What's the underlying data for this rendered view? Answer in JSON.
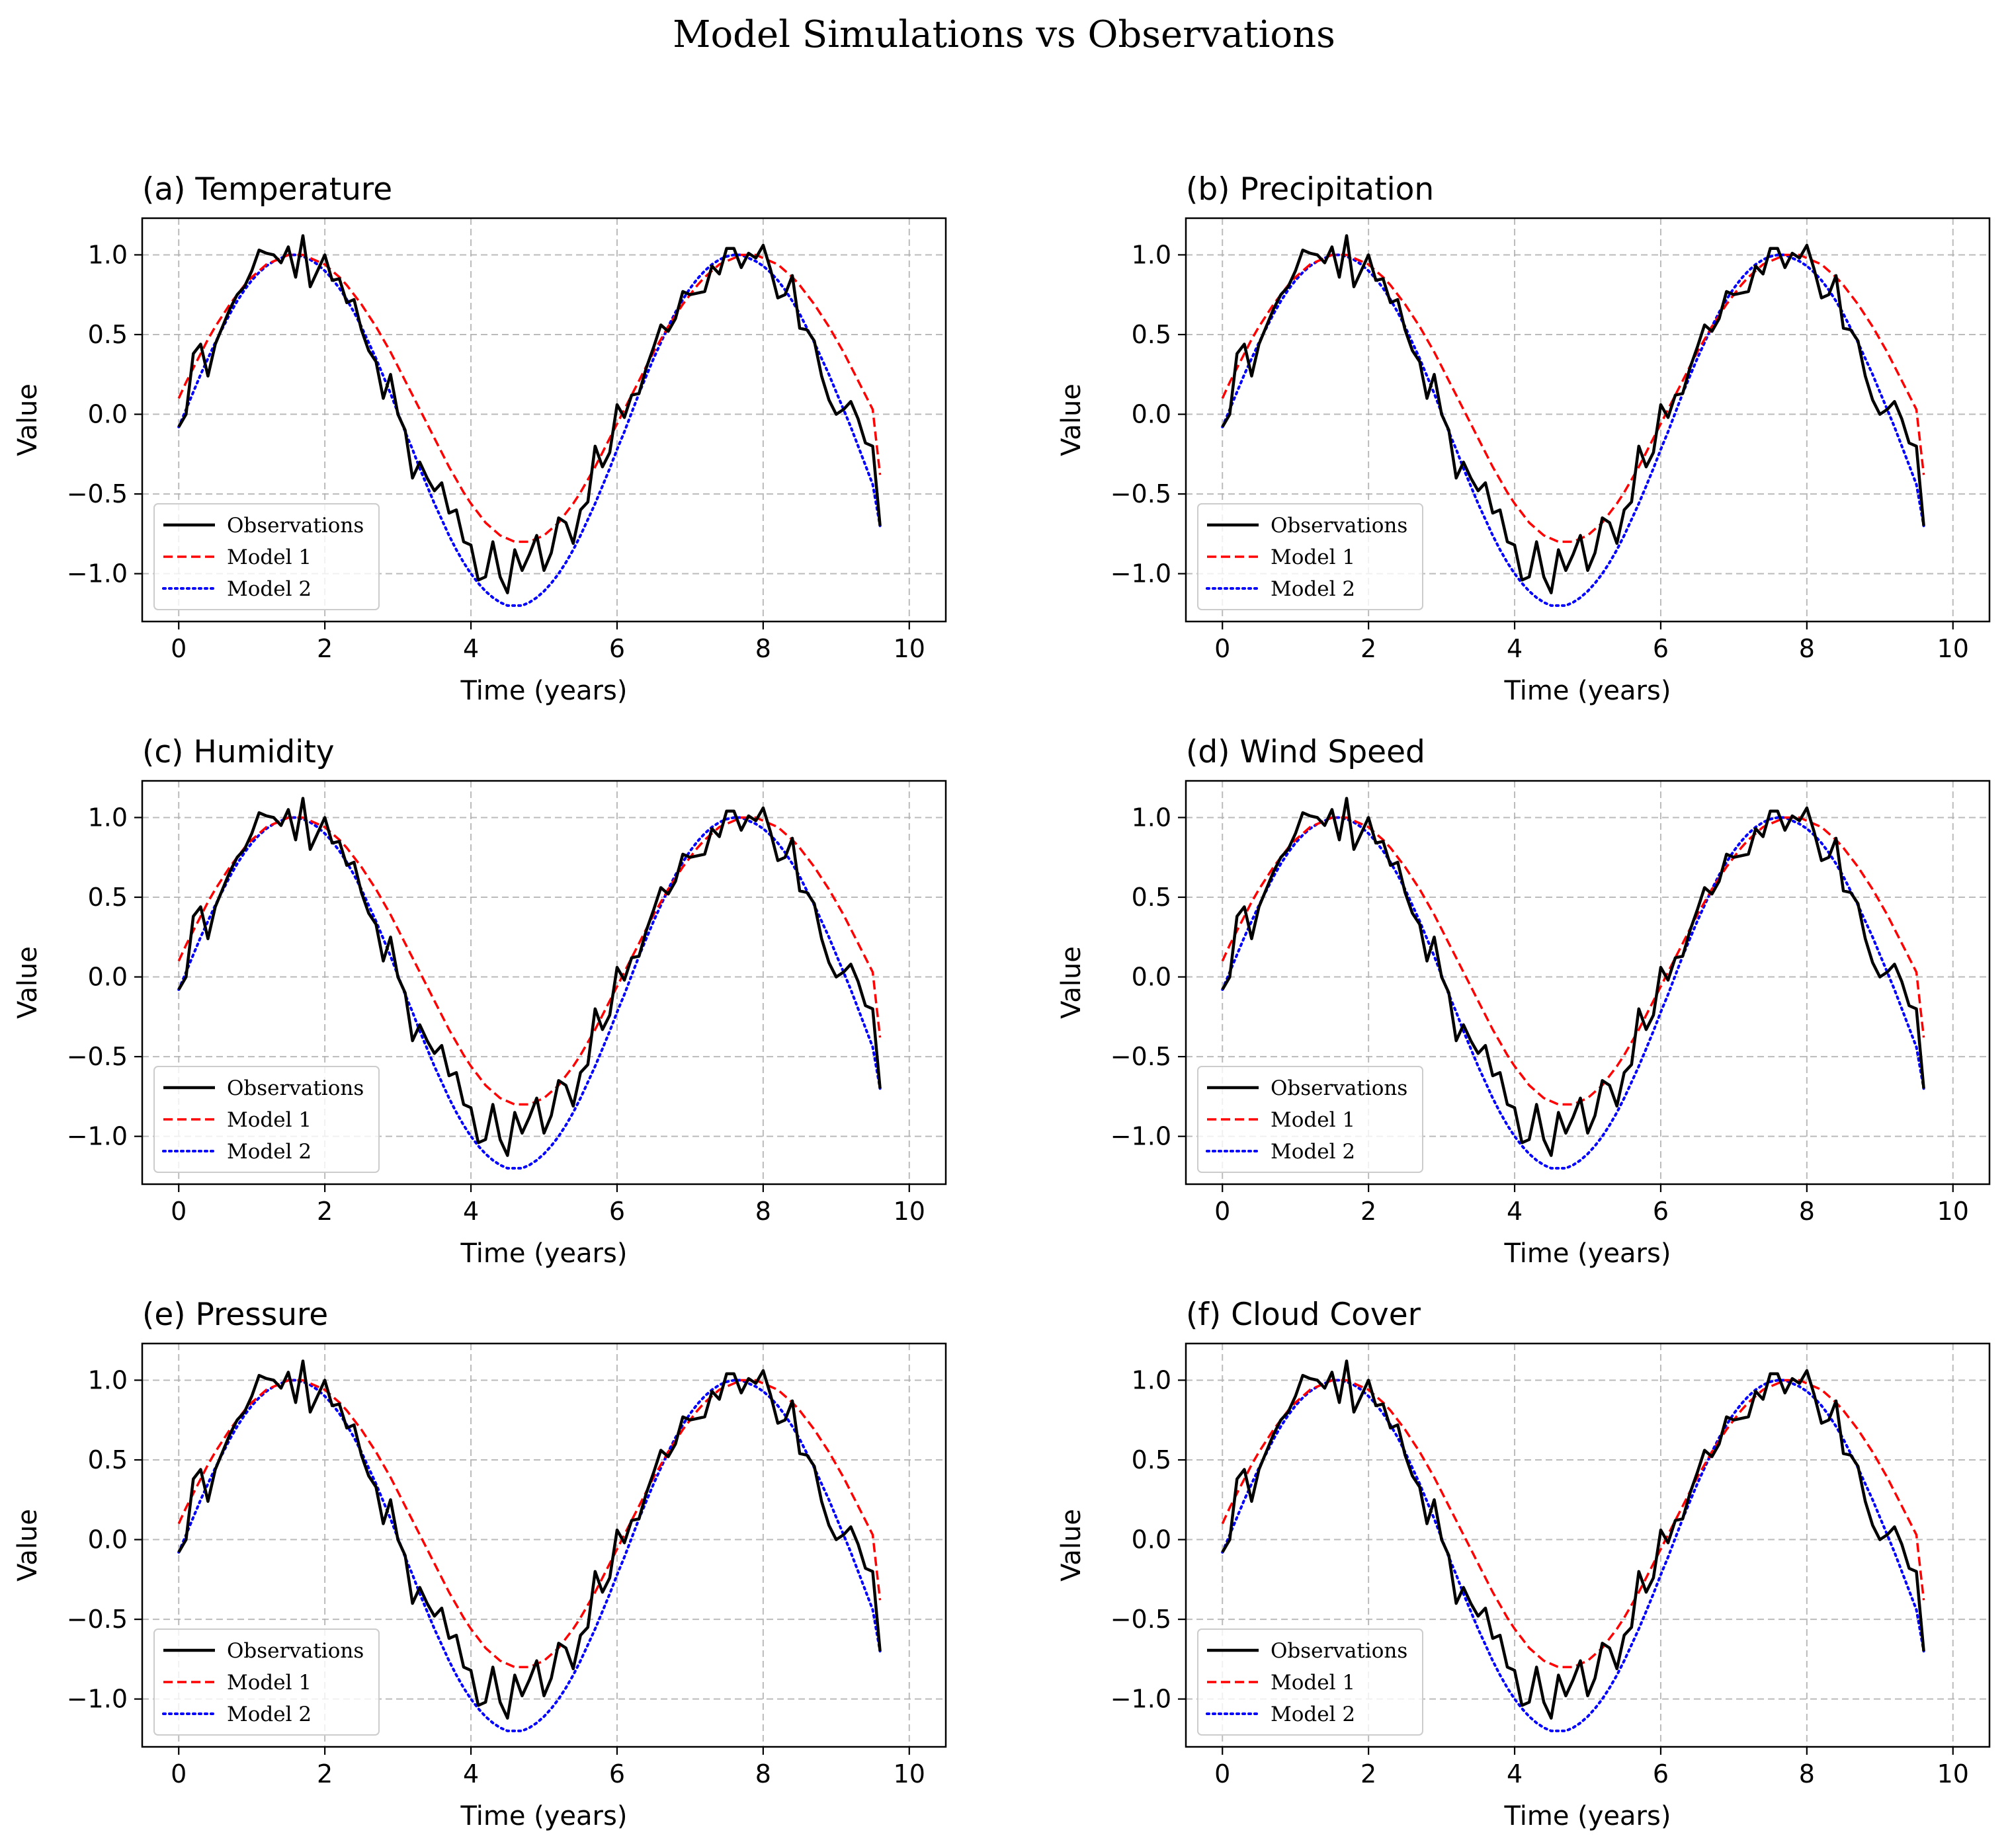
{
  "figure": {
    "title": "Model Simulations vs Observations"
  },
  "style": {
    "observations_color": "#000000",
    "model1_color": "#ff0000",
    "model2_color": "#0000ff",
    "grid_color": "#b0b0b0",
    "legend_border_color": "#cccccc"
  },
  "chart_data": [
    {
      "type": "line",
      "panel_title": "(a) Temperature",
      "xlabel": "Time (years)",
      "ylabel": "Value",
      "xlim": [
        -0.5,
        10.5
      ],
      "ylim": [
        -1.3,
        1.23
      ],
      "xticks": [
        0,
        2,
        4,
        6,
        8,
        10
      ],
      "xtick_labels": [
        "0",
        "2",
        "4",
        "6",
        "8",
        "10"
      ],
      "yticks": [
        -1.0,
        -0.5,
        0.0,
        0.5,
        1.0
      ],
      "ytick_labels": [
        "−1.0",
        "−0.5",
        "0.0",
        "0.5",
        "1.0"
      ],
      "grid": true,
      "legend_position": "lower-left",
      "series": [
        {
          "name": "Observations",
          "style": "solid",
          "color": "#000000"
        },
        {
          "name": "Model 1",
          "style": "dashed",
          "color": "#ff0000"
        },
        {
          "name": "Model 2",
          "style": "dotted",
          "color": "#0000ff"
        }
      ]
    },
    {
      "type": "line",
      "panel_title": "(b) Precipitation",
      "xlabel": "Time (years)",
      "ylabel": "Value",
      "xlim": [
        -0.5,
        10.5
      ],
      "ylim": [
        -1.3,
        1.23
      ],
      "xticks": [
        0,
        2,
        4,
        6,
        8,
        10
      ],
      "xtick_labels": [
        "0",
        "2",
        "4",
        "6",
        "8",
        "10"
      ],
      "yticks": [
        -1.0,
        -0.5,
        0.0,
        0.5,
        1.0
      ],
      "ytick_labels": [
        "−1.0",
        "−0.5",
        "0.0",
        "0.5",
        "1.0"
      ],
      "grid": true,
      "legend_position": "lower-left",
      "series": [
        {
          "name": "Observations",
          "style": "solid",
          "color": "#000000"
        },
        {
          "name": "Model 1",
          "style": "dashed",
          "color": "#ff0000"
        },
        {
          "name": "Model 2",
          "style": "dotted",
          "color": "#0000ff"
        }
      ]
    },
    {
      "type": "line",
      "panel_title": "(c) Humidity",
      "xlabel": "Time (years)",
      "ylabel": "Value",
      "xlim": [
        -0.5,
        10.5
      ],
      "ylim": [
        -1.3,
        1.23
      ],
      "xticks": [
        0,
        2,
        4,
        6,
        8,
        10
      ],
      "xtick_labels": [
        "0",
        "2",
        "4",
        "6",
        "8",
        "10"
      ],
      "yticks": [
        -1.0,
        -0.5,
        0.0,
        0.5,
        1.0
      ],
      "ytick_labels": [
        "−1.0",
        "−0.5",
        "0.0",
        "0.5",
        "1.0"
      ],
      "grid": true,
      "legend_position": "lower-left",
      "series": [
        {
          "name": "Observations",
          "style": "solid",
          "color": "#000000"
        },
        {
          "name": "Model 1",
          "style": "dashed",
          "color": "#ff0000"
        },
        {
          "name": "Model 2",
          "style": "dotted",
          "color": "#0000ff"
        }
      ]
    },
    {
      "type": "line",
      "panel_title": "(d) Wind Speed",
      "xlabel": "Time (years)",
      "ylabel": "Value",
      "xlim": [
        -0.5,
        10.5
      ],
      "ylim": [
        -1.3,
        1.23
      ],
      "xticks": [
        0,
        2,
        4,
        6,
        8,
        10
      ],
      "xtick_labels": [
        "0",
        "2",
        "4",
        "6",
        "8",
        "10"
      ],
      "yticks": [
        -1.0,
        -0.5,
        0.0,
        0.5,
        1.0
      ],
      "ytick_labels": [
        "−1.0",
        "−0.5",
        "0.0",
        "0.5",
        "1.0"
      ],
      "grid": true,
      "legend_position": "lower-left",
      "series": [
        {
          "name": "Observations",
          "style": "solid",
          "color": "#000000"
        },
        {
          "name": "Model 1",
          "style": "dashed",
          "color": "#ff0000"
        },
        {
          "name": "Model 2",
          "style": "dotted",
          "color": "#0000ff"
        }
      ]
    },
    {
      "type": "line",
      "panel_title": "(e) Pressure",
      "xlabel": "Time (years)",
      "ylabel": "Value",
      "xlim": [
        -0.5,
        10.5
      ],
      "ylim": [
        -1.3,
        1.23
      ],
      "xticks": [
        0,
        2,
        4,
        6,
        8,
        10
      ],
      "xtick_labels": [
        "0",
        "2",
        "4",
        "6",
        "8",
        "10"
      ],
      "yticks": [
        -1.0,
        -0.5,
        0.0,
        0.5,
        1.0
      ],
      "ytick_labels": [
        "−1.0",
        "−0.5",
        "0.0",
        "0.5",
        "1.0"
      ],
      "grid": true,
      "legend_position": "lower-left",
      "series": [
        {
          "name": "Observations",
          "style": "solid",
          "color": "#000000"
        },
        {
          "name": "Model 1",
          "style": "dashed",
          "color": "#ff0000"
        },
        {
          "name": "Model 2",
          "style": "dotted",
          "color": "#0000ff"
        }
      ]
    },
    {
      "type": "line",
      "panel_title": "(f) Cloud Cover",
      "xlabel": "Time (years)",
      "ylabel": "Value",
      "xlim": [
        -0.5,
        10.5
      ],
      "ylim": [
        -1.3,
        1.23
      ],
      "xticks": [
        0,
        2,
        4,
        6,
        8,
        10
      ],
      "xtick_labels": [
        "0",
        "2",
        "4",
        "6",
        "8",
        "10"
      ],
      "yticks": [
        -1.0,
        -0.5,
        0.0,
        0.5,
        1.0
      ],
      "ytick_labels": [
        "−1.0",
        "−0.5",
        "0.0",
        "0.5",
        "1.0"
      ],
      "grid": true,
      "legend_position": "lower-left",
      "series": [
        {
          "name": "Observations",
          "style": "solid",
          "color": "#000000"
        },
        {
          "name": "Model 1",
          "style": "dashed",
          "color": "#ff0000"
        },
        {
          "name": "Model 2",
          "style": "dotted",
          "color": "#0000ff"
        }
      ]
    }
  ],
  "shared_series_data": {
    "x": [
      0,
      0.1,
      0.2,
      0.3,
      0.4,
      0.5,
      0.6,
      0.7,
      0.8,
      0.9,
      1,
      1.1,
      1.2,
      1.3,
      1.4,
      1.5,
      1.6,
      1.7,
      1.8,
      1.9,
      2,
      2.1,
      2.2,
      2.3,
      2.4,
      2.5,
      2.6,
      2.7,
      2.8,
      2.9,
      3,
      3.1,
      3.2,
      3.3,
      3.4,
      3.5,
      3.6,
      3.7,
      3.8,
      3.9,
      4,
      4.1,
      4.2,
      4.3,
      4.4,
      4.5,
      4.6,
      4.7,
      4.8,
      4.9,
      5,
      5.1,
      5.2,
      5.3,
      5.4,
      5.5,
      5.6,
      5.7,
      5.8,
      5.9,
      6,
      6.1,
      6.2,
      6.3,
      6.4,
      6.5,
      6.6,
      6.7,
      6.8,
      6.9,
      7,
      7.1,
      7.2,
      7.3,
      7.4,
      7.5,
      7.6,
      7.7,
      7.8,
      7.9,
      8,
      8.1,
      8.2,
      8.3,
      8.4,
      8.5,
      8.6,
      8.7,
      8.8,
      8.9,
      9,
      9.1,
      9.2,
      9.3,
      9.4,
      9.5,
      9.6,
      9.7,
      9.8,
      9.9,
      10
    ],
    "observations": [
      -0.08,
      0.0,
      0.38,
      0.44,
      0.24,
      0.44,
      0.55,
      0.66,
      0.75,
      0.8,
      0.9,
      1.03,
      1.01,
      1.0,
      0.95,
      1.05,
      0.86,
      1.12,
      0.8,
      0.9,
      1.0,
      0.84,
      0.85,
      0.7,
      0.72,
      0.53,
      0.4,
      0.33,
      0.1,
      0.25,
      0.0,
      -0.1,
      -0.4,
      -0.3,
      -0.4,
      -0.48,
      -0.43,
      -0.62,
      -0.6,
      -0.8,
      -0.82,
      -1.04,
      -1.02,
      -0.8,
      -1.02,
      -1.12,
      -0.85,
      -0.98,
      -0.88,
      -0.76,
      -0.98,
      -0.87,
      -0.65,
      -0.68,
      -0.81,
      -0.6,
      -0.55,
      -0.2,
      -0.33,
      -0.24,
      0.06,
      -0.02,
      0.12,
      0.13,
      0.29,
      0.42,
      0.56,
      0.52,
      0.6,
      0.77,
      0.75,
      0.76,
      0.77,
      0.93,
      0.88,
      1.04,
      1.04,
      0.92,
      1.01,
      0.98,
      1.06,
      0.91,
      0.73,
      0.75,
      0.87,
      0.54,
      0.53,
      0.46,
      0.24,
      0.09,
      0.0,
      0.03,
      0.08,
      -0.03,
      -0.18,
      -0.2,
      -0.7
    ],
    "model1": [
      0.1,
      0.2,
      0.29,
      0.38,
      0.47,
      0.55,
      0.62,
      0.69,
      0.75,
      0.81,
      0.86,
      0.9,
      0.94,
      0.96,
      0.98,
      1.0,
      1.0,
      1.0,
      0.98,
      0.96,
      0.94,
      0.9,
      0.86,
      0.81,
      0.75,
      0.69,
      0.62,
      0.55,
      0.47,
      0.39,
      0.3,
      0.21,
      0.12,
      0.03,
      -0.06,
      -0.15,
      -0.24,
      -0.33,
      -0.41,
      -0.49,
      -0.56,
      -0.62,
      -0.68,
      -0.72,
      -0.76,
      -0.78,
      -0.8,
      -0.8,
      -0.8,
      -0.78,
      -0.76,
      -0.72,
      -0.68,
      -0.62,
      -0.56,
      -0.49,
      -0.41,
      -0.33,
      -0.24,
      -0.15,
      -0.06,
      0.03,
      0.12,
      0.21,
      0.3,
      0.39,
      0.47,
      0.55,
      0.62,
      0.69,
      0.75,
      0.81,
      0.86,
      0.9,
      0.94,
      0.96,
      0.98,
      1.0,
      1.0,
      1.0,
      0.98,
      0.96,
      0.94,
      0.9,
      0.86,
      0.81,
      0.75,
      0.69,
      0.62,
      0.55,
      0.47,
      0.39,
      0.3,
      0.21,
      0.12,
      0.03,
      -0.38
    ],
    "model2": [
      -0.08,
      0.03,
      0.14,
      0.25,
      0.35,
      0.45,
      0.54,
      0.63,
      0.71,
      0.78,
      0.84,
      0.89,
      0.93,
      0.96,
      0.98,
      1.0,
      1.0,
      0.99,
      0.97,
      0.94,
      0.9,
      0.85,
      0.79,
      0.72,
      0.64,
      0.55,
      0.45,
      0.35,
      0.24,
      0.13,
      0.01,
      -0.11,
      -0.22,
      -0.34,
      -0.45,
      -0.56,
      -0.66,
      -0.76,
      -0.85,
      -0.93,
      -1.0,
      -1.06,
      -1.11,
      -1.15,
      -1.18,
      -1.2,
      -1.2,
      -1.2,
      -1.18,
      -1.15,
      -1.11,
      -1.06,
      -1.0,
      -0.93,
      -0.85,
      -0.76,
      -0.66,
      -0.56,
      -0.45,
      -0.34,
      -0.22,
      -0.11,
      0.01,
      0.13,
      0.24,
      0.35,
      0.45,
      0.55,
      0.64,
      0.72,
      0.79,
      0.85,
      0.9,
      0.94,
      0.97,
      0.99,
      1.0,
      1.0,
      0.98,
      0.96,
      0.93,
      0.89,
      0.84,
      0.78,
      0.71,
      0.63,
      0.54,
      0.45,
      0.35,
      0.25,
      0.14,
      0.03,
      -0.08,
      -0.2,
      -0.32,
      -0.44,
      -0.7
    ]
  }
}
